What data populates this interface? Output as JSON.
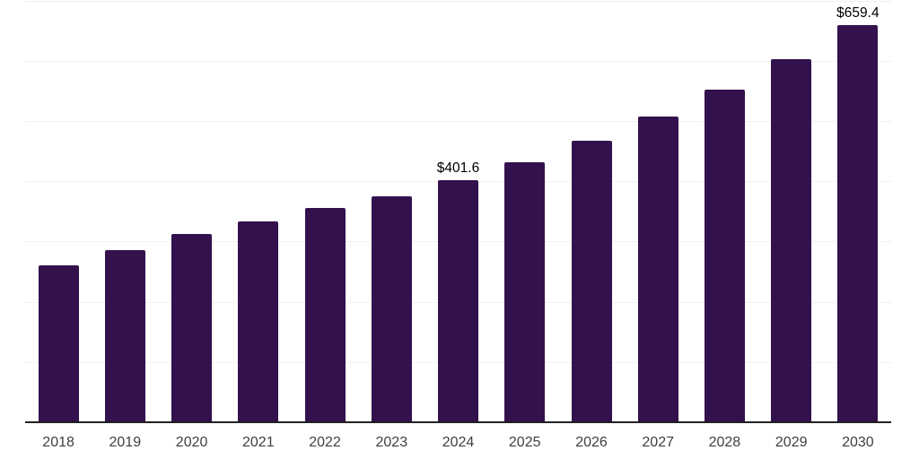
{
  "chart_data": {
    "type": "bar",
    "title": "",
    "xlabel": "",
    "ylabel": "",
    "categories": [
      "2018",
      "2019",
      "2020",
      "2021",
      "2022",
      "2023",
      "2024",
      "2025",
      "2026",
      "2027",
      "2028",
      "2029",
      "2030"
    ],
    "values": [
      260.0,
      285.5,
      313.0,
      334.0,
      356.5,
      375.0,
      401.6,
      432.0,
      467.0,
      507.5,
      552.0,
      603.0,
      659.4
    ],
    "data_labels": [
      {
        "category": "2024",
        "text": "$401.6"
      },
      {
        "category": "2030",
        "text": "$659.4"
      }
    ],
    "ylim": [
      0,
      701
    ],
    "gridline_interval": 100,
    "grid": "horizontal",
    "legend": "none",
    "colors": {
      "bar_fill": "#33114d",
      "gridline": "#f0f0f0",
      "axis_line": "#212121",
      "tick_label": "#3f3f3f",
      "data_label": "#000000",
      "background": "#ffffff"
    }
  }
}
